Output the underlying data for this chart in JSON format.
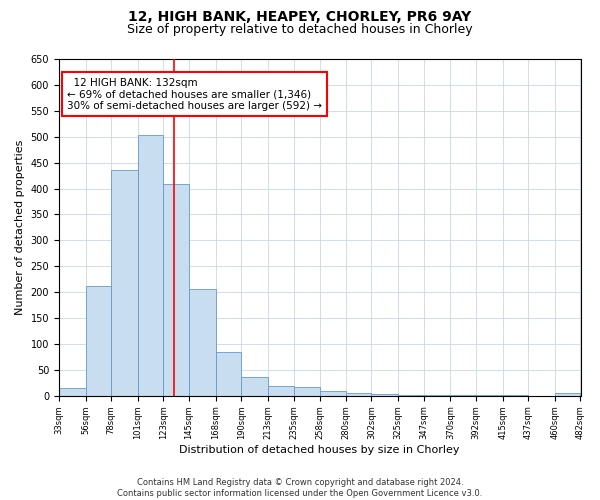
{
  "title1": "12, HIGH BANK, HEAPEY, CHORLEY, PR6 9AY",
  "title2": "Size of property relative to detached houses in Chorley",
  "xlabel": "Distribution of detached houses by size in Chorley",
  "ylabel": "Number of detached properties",
  "annotation_line1": "  12 HIGH BANK: 132sqm  ",
  "annotation_line2": "← 69% of detached houses are smaller (1,346)",
  "annotation_line3": "30% of semi-detached houses are larger (592) →",
  "footer1": "Contains HM Land Registry data © Crown copyright and database right 2024.",
  "footer2": "Contains public sector information licensed under the Open Government Licence v3.0.",
  "bar_color": "#c9ddf0",
  "bar_edge_color": "#6699cc",
  "red_line_x": 132,
  "bin_edges": [
    33,
    56,
    78,
    101,
    123,
    145,
    168,
    190,
    213,
    235,
    258,
    280,
    302,
    325,
    347,
    370,
    392,
    415,
    437,
    460,
    482
  ],
  "bin_values": [
    15,
    212,
    436,
    503,
    408,
    207,
    84,
    37,
    19,
    18,
    10,
    5,
    3,
    2,
    2,
    2,
    2,
    1,
    0,
    5
  ],
  "ylim": [
    0,
    650
  ],
  "yticks": [
    0,
    50,
    100,
    150,
    200,
    250,
    300,
    350,
    400,
    450,
    500,
    550,
    600,
    650
  ],
  "background_color": "#ffffff",
  "grid_color": "#c8d8ea",
  "title1_fontsize": 10,
  "title2_fontsize": 9,
  "xlabel_fontsize": 8,
  "ylabel_fontsize": 8,
  "xtick_fontsize": 6,
  "ytick_fontsize": 7,
  "footer_fontsize": 6,
  "annot_fontsize": 7.5
}
